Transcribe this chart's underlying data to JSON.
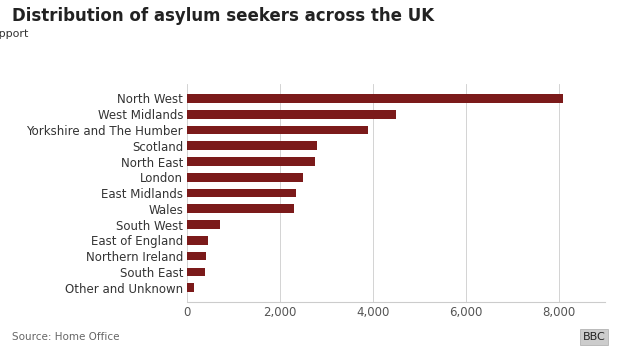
{
  "title": "Distribution of asylum seekers across the UK",
  "source": "Source: Home Office",
  "categories": [
    "Other and Unknown",
    "South East",
    "Northern Ireland",
    "East of England",
    "South West",
    "Wales",
    "East Midlands",
    "London",
    "North East",
    "Scotland",
    "Yorkshire and The Humber",
    "West Midlands",
    "North West"
  ],
  "values": [
    150,
    390,
    400,
    440,
    710,
    2300,
    2350,
    2500,
    2750,
    2800,
    3900,
    4500,
    8100
  ],
  "bar_color": "#7b1a1a",
  "legend_color": "#7b1a1a",
  "background_color": "#ffffff",
  "title_fontsize": 12,
  "legend_fontsize": 8,
  "label_fontsize": 8.5,
  "tick_fontsize": 8.5,
  "source_fontsize": 7.5,
  "xlim": [
    0,
    9000
  ],
  "xticks": [
    0,
    2000,
    4000,
    6000,
    8000
  ],
  "xtick_labels": [
    "0",
    "2,000",
    "4,000",
    "6,000",
    "8,000"
  ],
  "bar_height": 0.55
}
